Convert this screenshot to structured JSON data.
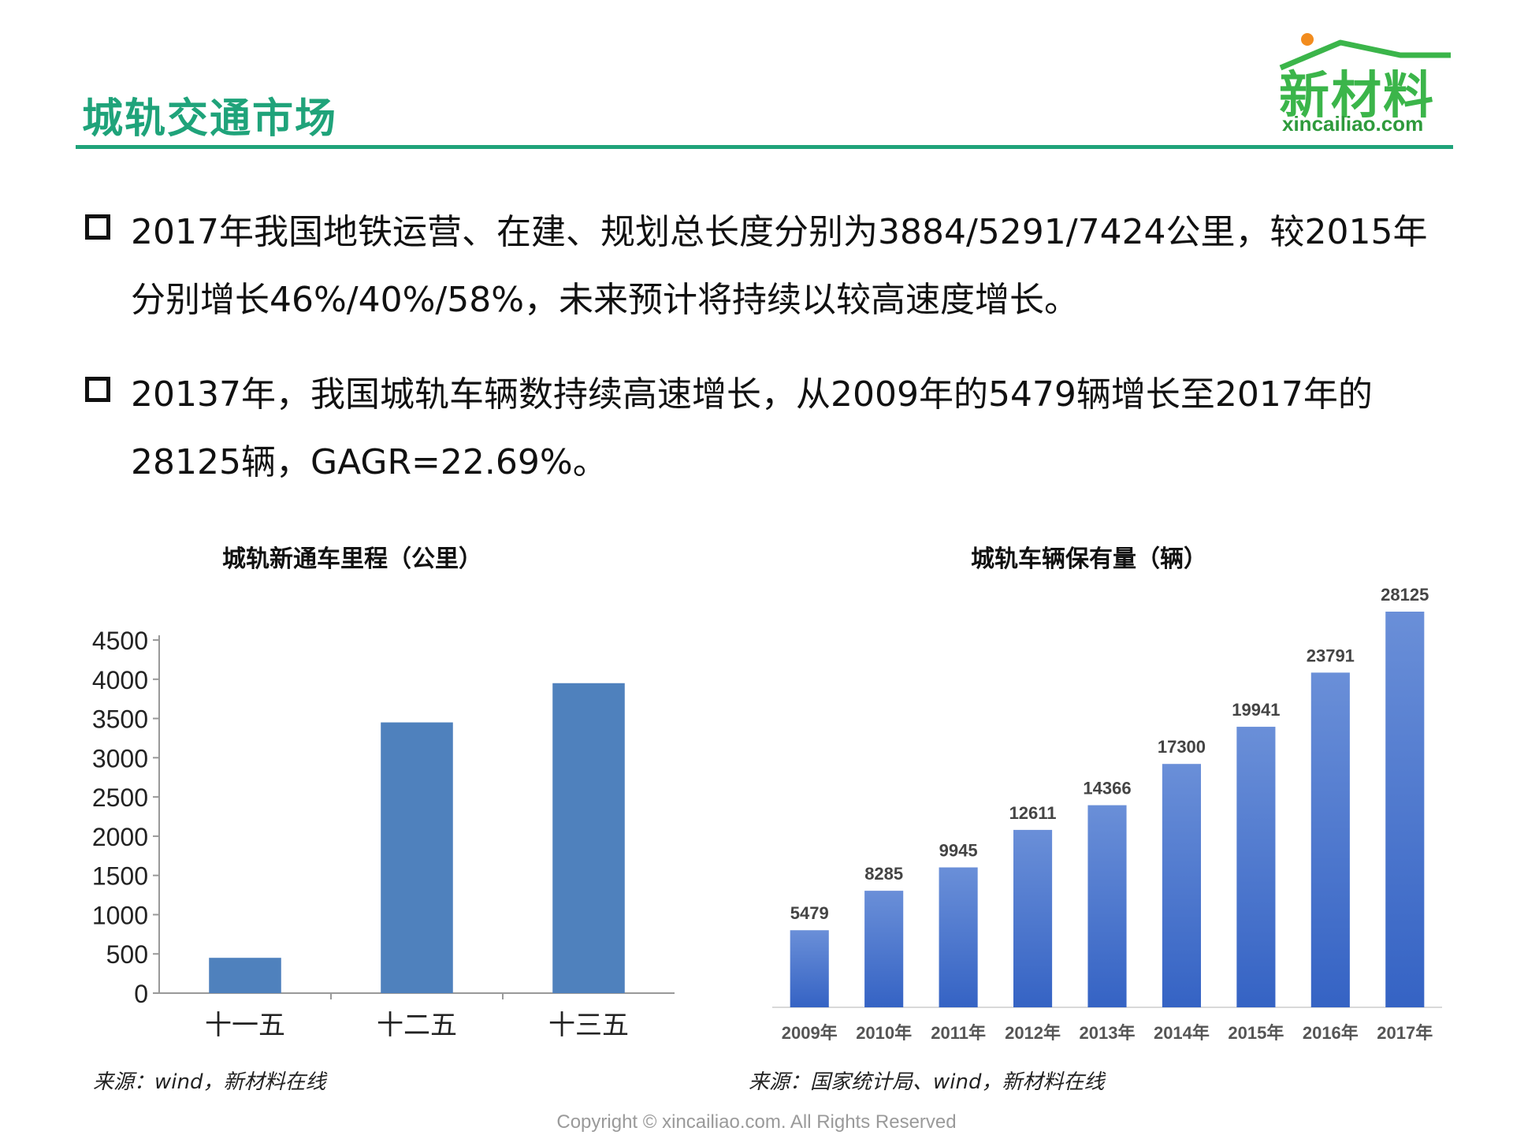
{
  "page": {
    "title": "城轨交通市场",
    "logo": {
      "brand": "新材料",
      "url": "xincailiao.com"
    },
    "bullets": [
      {
        "text": "2017年我国地铁运营、在建、规划总长度分别为3884/5291/7424公里，较2015年分别增长46%/40%/58%，未来预计将持续以较高速度增长。"
      },
      {
        "text": "20137年，我国城轨车辆数持续高速增长，从2009年的5479辆增长至2017年的28125辆，GAGR=22.69%。"
      }
    ],
    "left_source": "来源：wind，新材料在线",
    "right_source": "来源：国家统计局、wind，新材料在线",
    "copyright": "Copyright © xincailiao.com. All Rights Reserved"
  },
  "colors": {
    "accent": "#1fa37a",
    "left_bar": "#4f81bd",
    "right_bar_top": "#6a8fd8",
    "right_bar_bottom": "#3563c4"
  },
  "chart_data": [
    {
      "type": "bar",
      "title": "城轨新通车里程（公里）",
      "categories": [
        "十一五",
        "十二五",
        "十三五"
      ],
      "values": [
        450,
        3450,
        3950
      ],
      "yticks": [
        0,
        500,
        1000,
        1500,
        2000,
        2500,
        3000,
        3500,
        4000,
        4500
      ],
      "ylim": [
        0,
        4500
      ],
      "grid": false
    },
    {
      "type": "bar",
      "title": "城轨车辆保有量（辆）",
      "categories": [
        "2009年",
        "2010年",
        "2011年",
        "2012年",
        "2013年",
        "2014年",
        "2015年",
        "2016年",
        "2017年"
      ],
      "values": [
        5479,
        8285,
        9945,
        12611,
        14366,
        17300,
        19941,
        23791,
        28125
      ],
      "data_labels": [
        "5479",
        "8285",
        "9945",
        "12611",
        "14366",
        "17300",
        "19941",
        "23791",
        "28125"
      ],
      "ylim": [
        0,
        28125
      ],
      "grid": false
    }
  ]
}
